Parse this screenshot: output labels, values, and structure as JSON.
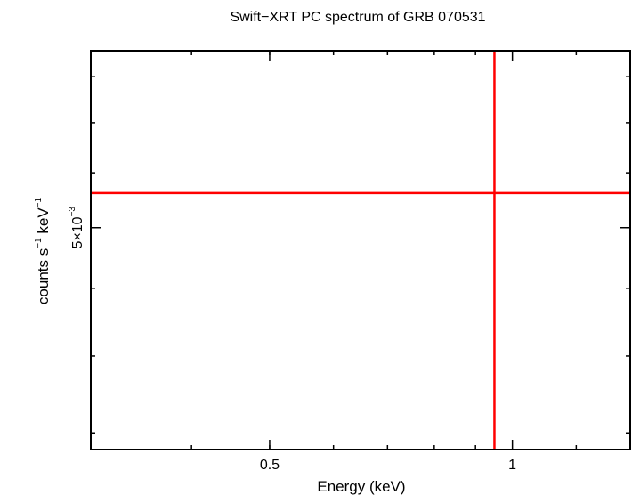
{
  "chart_data": {
    "type": "scatter",
    "title": "Swift−XRT PC spectrum of GRB 070531",
    "xlabel": "Energy (keV)",
    "ylabel": {
      "prefix": "counts s",
      "sup1": "−1",
      "mid": " keV",
      "sup2": "−1"
    },
    "x_scale": "log",
    "y_scale": "log",
    "xlim": [
      0.3,
      1.4
    ],
    "ylim": [
      0.0034,
      0.0068
    ],
    "x_ticks": [
      {
        "value": 0.5,
        "label": "0.5"
      },
      {
        "value": 1,
        "label": "1"
      }
    ],
    "y_ticks": [
      {
        "value": 0.005,
        "label": {
          "base": "5×10",
          "exp": "−3"
        }
      }
    ],
    "points": [
      {
        "x": 0.95,
        "y": 0.00531,
        "xerr": [
          0.3,
          1.4
        ],
        "yerr": [
          0.0034,
          0.0068
        ],
        "color": "#ff0000"
      }
    ]
  }
}
